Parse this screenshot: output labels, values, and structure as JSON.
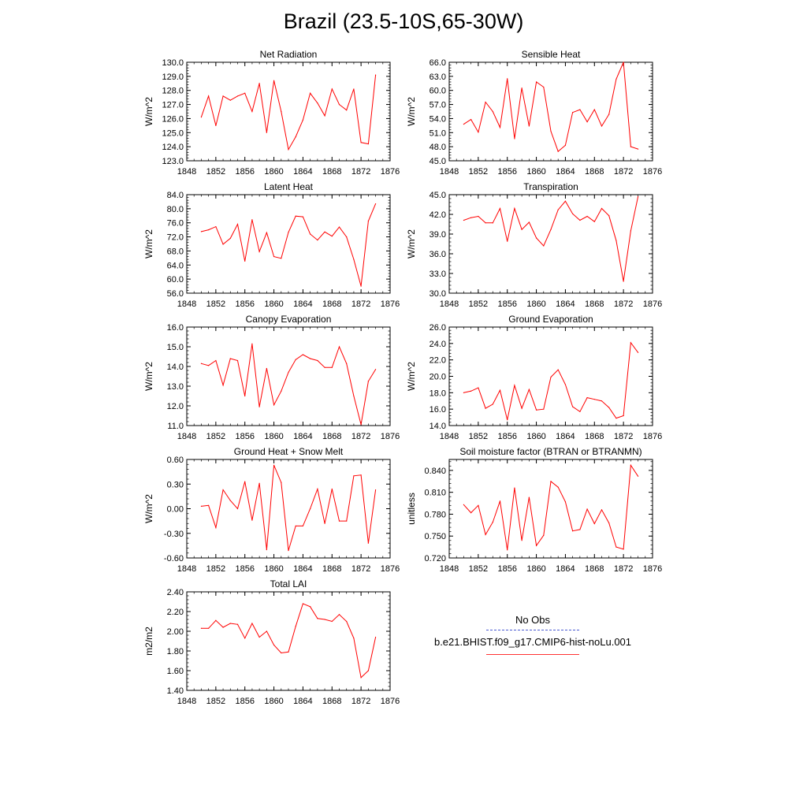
{
  "page_title": "Brazil (23.5-10S,65-30W)",
  "legend": {
    "obs_label": "No Obs",
    "model_label": "b.e21.BHIST.f09_g17.CMIP6-hist-noLu.001",
    "obs_color": "#4a5bd1",
    "model_color": "#ff0000"
  },
  "chart_data": [
    {
      "type": "line",
      "title": "Net Radiation",
      "ylabel": "W/m^2",
      "xlim": [
        1848,
        1876
      ],
      "xticks": [
        "1848",
        "1852",
        "1856",
        "1860",
        "1864",
        "1868",
        "1872",
        "1876"
      ],
      "ylim": [
        123.0,
        130.0
      ],
      "yticks": [
        "123.0",
        "124.0",
        "125.0",
        "126.0",
        "127.0",
        "128.0",
        "129.0",
        "130.0"
      ],
      "series": [
        {
          "x": [
            1850,
            1851,
            1852,
            1853,
            1854,
            1855,
            1856,
            1857,
            1858,
            1859,
            1860,
            1861,
            1862,
            1863,
            1864,
            1865,
            1866,
            1867,
            1868,
            1869,
            1870,
            1871,
            1872,
            1873,
            1874
          ],
          "values": [
            126.1,
            127.6,
            125.5,
            127.6,
            127.3,
            127.6,
            127.8,
            126.5,
            128.5,
            125.0,
            128.7,
            126.5,
            123.8,
            124.7,
            125.9,
            127.8,
            127.1,
            126.2,
            128.1,
            127.0,
            126.6,
            128.1,
            124.3,
            124.2,
            129.1
          ]
        }
      ]
    },
    {
      "type": "line",
      "title": "Sensible Heat",
      "ylabel": "W/m^2",
      "xlim": [
        1848,
        1876
      ],
      "xticks": [
        "1848",
        "1852",
        "1856",
        "1860",
        "1864",
        "1868",
        "1872",
        "1876"
      ],
      "ylim": [
        45.0,
        66.0
      ],
      "yticks": [
        "45.0",
        "48.0",
        "51.0",
        "54.0",
        "57.0",
        "60.0",
        "63.0",
        "66.0"
      ],
      "series": [
        {
          "x": [
            1850,
            1851,
            1852,
            1853,
            1854,
            1855,
            1856,
            1857,
            1858,
            1859,
            1860,
            1861,
            1862,
            1863,
            1864,
            1865,
            1866,
            1867,
            1868,
            1869,
            1870,
            1871,
            1872,
            1873,
            1874
          ],
          "values": [
            52.8,
            53.8,
            51.1,
            57.5,
            55.5,
            52.1,
            62.5,
            49.7,
            60.5,
            52.4,
            61.8,
            60.7,
            51.3,
            47.0,
            48.3,
            55.3,
            55.9,
            53.3,
            55.9,
            52.4,
            54.9,
            62.4,
            66.0,
            48.0,
            47.5
          ]
        }
      ]
    },
    {
      "type": "line",
      "title": "Latent Heat",
      "ylabel": "W/m^2",
      "xlim": [
        1848,
        1876
      ],
      "xticks": [
        "1848",
        "1852",
        "1856",
        "1860",
        "1864",
        "1868",
        "1872",
        "1876"
      ],
      "ylim": [
        56.0,
        84.0
      ],
      "yticks": [
        "56.0",
        "60.0",
        "64.0",
        "68.0",
        "72.0",
        "76.0",
        "80.0",
        "84.0"
      ],
      "series": [
        {
          "x": [
            1850,
            1851,
            1852,
            1853,
            1854,
            1855,
            1856,
            1857,
            1858,
            1859,
            1860,
            1861,
            1862,
            1863,
            1864,
            1865,
            1866,
            1867,
            1868,
            1869,
            1870,
            1871,
            1872,
            1873,
            1874
          ],
          "values": [
            73.5,
            74.0,
            74.9,
            69.9,
            71.6,
            75.6,
            65.1,
            76.9,
            67.8,
            73.2,
            66.4,
            65.9,
            73.3,
            77.9,
            77.7,
            72.8,
            71.1,
            73.4,
            72.2,
            74.8,
            72.0,
            65.6,
            58.0,
            76.5,
            81.4
          ]
        }
      ]
    },
    {
      "type": "line",
      "title": "Transpiration",
      "ylabel": "W/m^2",
      "xlim": [
        1848,
        1876
      ],
      "xticks": [
        "1848",
        "1852",
        "1856",
        "1860",
        "1864",
        "1868",
        "1872",
        "1876"
      ],
      "ylim": [
        30.0,
        45.0
      ],
      "yticks": [
        "30.0",
        "33.0",
        "36.0",
        "39.0",
        "42.0",
        "45.0"
      ],
      "series": [
        {
          "x": [
            1850,
            1851,
            1852,
            1853,
            1854,
            1855,
            1856,
            1857,
            1858,
            1859,
            1860,
            1861,
            1862,
            1863,
            1864,
            1865,
            1866,
            1867,
            1868,
            1869,
            1870,
            1871,
            1872,
            1873,
            1874
          ],
          "values": [
            41.1,
            41.5,
            41.7,
            40.7,
            40.7,
            42.9,
            37.9,
            42.9,
            39.7,
            40.8,
            38.4,
            37.2,
            39.7,
            42.7,
            44.0,
            42.1,
            41.1,
            41.7,
            40.9,
            42.9,
            41.8,
            38.0,
            31.8,
            39.5,
            44.7
          ]
        }
      ]
    },
    {
      "type": "line",
      "title": "Canopy Evaporation",
      "ylabel": "W/m^2",
      "xlim": [
        1848,
        1876
      ],
      "xticks": [
        "1848",
        "1852",
        "1856",
        "1860",
        "1864",
        "1868",
        "1872",
        "1876"
      ],
      "ylim": [
        11.0,
        16.0
      ],
      "yticks": [
        "11.0",
        "12.0",
        "13.0",
        "14.0",
        "15.0",
        "16.0"
      ],
      "series": [
        {
          "x": [
            1850,
            1851,
            1852,
            1853,
            1854,
            1855,
            1856,
            1857,
            1858,
            1859,
            1860,
            1861,
            1862,
            1863,
            1864,
            1865,
            1866,
            1867,
            1868,
            1869,
            1870,
            1871,
            1872,
            1873,
            1874
          ],
          "values": [
            14.15,
            14.05,
            14.3,
            13.05,
            14.4,
            14.3,
            12.5,
            15.15,
            11.95,
            13.9,
            12.05,
            12.75,
            13.7,
            14.35,
            14.6,
            14.4,
            14.3,
            13.95,
            13.95,
            15.0,
            14.15,
            12.5,
            11.05,
            13.25,
            13.85
          ]
        }
      ]
    },
    {
      "type": "line",
      "title": "Ground Evaporation",
      "ylabel": "W/m^2",
      "xlim": [
        1848,
        1876
      ],
      "xticks": [
        "1848",
        "1852",
        "1856",
        "1860",
        "1864",
        "1868",
        "1872",
        "1876"
      ],
      "ylim": [
        14.0,
        26.0
      ],
      "yticks": [
        "14.0",
        "16.0",
        "18.0",
        "20.0",
        "22.0",
        "24.0",
        "26.0"
      ],
      "series": [
        {
          "x": [
            1850,
            1851,
            1852,
            1853,
            1854,
            1855,
            1856,
            1857,
            1858,
            1859,
            1860,
            1861,
            1862,
            1863,
            1864,
            1865,
            1866,
            1867,
            1868,
            1869,
            1870,
            1871,
            1872,
            1873,
            1874
          ],
          "values": [
            18.0,
            18.2,
            18.6,
            16.1,
            16.6,
            18.3,
            14.7,
            18.9,
            16.1,
            18.4,
            15.9,
            16.0,
            19.9,
            20.8,
            19.0,
            16.3,
            15.7,
            17.4,
            17.2,
            17.0,
            16.2,
            14.9,
            15.2,
            24.1,
            22.9
          ]
        }
      ]
    },
    {
      "type": "line",
      "title": "Ground Heat + Snow Melt",
      "ylabel": "W/m^2",
      "xlim": [
        1848,
        1876
      ],
      "xticks": [
        "1848",
        "1852",
        "1856",
        "1860",
        "1864",
        "1868",
        "1872",
        "1876"
      ],
      "ylim": [
        -0.6,
        0.6
      ],
      "yticks": [
        "-0.60",
        "-0.30",
        "0.00",
        "0.30",
        "0.60"
      ],
      "series": [
        {
          "x": [
            1850,
            1851,
            1852,
            1853,
            1854,
            1855,
            1856,
            1857,
            1858,
            1859,
            1860,
            1861,
            1862,
            1863,
            1864,
            1865,
            1866,
            1867,
            1868,
            1869,
            1870,
            1871,
            1872,
            1873,
            1874
          ],
          "values": [
            0.03,
            0.04,
            -0.23,
            0.23,
            0.1,
            0.0,
            0.33,
            -0.14,
            0.31,
            -0.5,
            0.53,
            0.32,
            -0.51,
            -0.21,
            -0.21,
            0.0,
            0.24,
            -0.18,
            0.24,
            -0.15,
            -0.15,
            0.4,
            0.41,
            -0.42,
            0.23
          ]
        }
      ]
    },
    {
      "type": "line",
      "title": "Soil moisture factor (BTRAN or BTRANMN)",
      "ylabel": "unitless",
      "xlim": [
        1848,
        1876
      ],
      "xticks": [
        "1848",
        "1852",
        "1856",
        "1860",
        "1864",
        "1868",
        "1872",
        "1876"
      ],
      "ylim": [
        0.72,
        0.855
      ],
      "yticks": [
        "0.720",
        "0.750",
        "0.780",
        "0.810",
        "0.840"
      ],
      "series": [
        {
          "x": [
            1850,
            1851,
            1852,
            1853,
            1854,
            1855,
            1856,
            1857,
            1858,
            1859,
            1860,
            1861,
            1862,
            1863,
            1864,
            1865,
            1866,
            1867,
            1868,
            1869,
            1870,
            1871,
            1872,
            1873,
            1874
          ],
          "values": [
            0.793,
            0.782,
            0.792,
            0.752,
            0.769,
            0.798,
            0.731,
            0.816,
            0.744,
            0.803,
            0.737,
            0.751,
            0.825,
            0.817,
            0.797,
            0.757,
            0.759,
            0.787,
            0.767,
            0.786,
            0.768,
            0.735,
            0.732,
            0.847,
            0.832
          ]
        }
      ]
    },
    {
      "type": "line",
      "title": "Total LAI",
      "ylabel": "m2/m2",
      "xlim": [
        1848,
        1876
      ],
      "xticks": [
        "1848",
        "1852",
        "1856",
        "1860",
        "1864",
        "1868",
        "1872",
        "1876"
      ],
      "ylim": [
        1.4,
        2.4
      ],
      "yticks": [
        "1.40",
        "1.60",
        "1.80",
        "2.00",
        "2.20",
        "2.40"
      ],
      "series": [
        {
          "x": [
            1850,
            1851,
            1852,
            1853,
            1854,
            1855,
            1856,
            1857,
            1858,
            1859,
            1860,
            1861,
            1862,
            1863,
            1864,
            1865,
            1866,
            1867,
            1868,
            1869,
            1870,
            1871,
            1872,
            1873,
            1874
          ],
          "values": [
            2.03,
            2.03,
            2.11,
            2.04,
            2.08,
            2.07,
            1.93,
            2.08,
            1.94,
            2.0,
            1.86,
            1.78,
            1.79,
            2.05,
            2.28,
            2.25,
            2.13,
            2.12,
            2.1,
            2.17,
            2.1,
            1.93,
            1.53,
            1.6,
            1.94
          ]
        }
      ]
    }
  ]
}
